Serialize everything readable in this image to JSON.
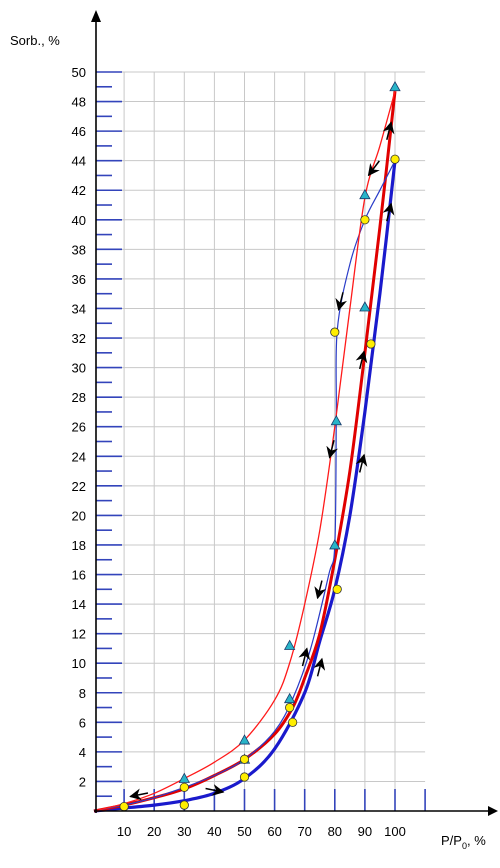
{
  "chart_data": {
    "type": "line",
    "ylabel": "Sorb., %",
    "xlabel_main": "P/P",
    "xlabel_sub": "0",
    "xlabel_unit": ", %",
    "xlim": [
      0,
      110
    ],
    "ylim": [
      0,
      50
    ],
    "x_ticks": [
      10,
      20,
      30,
      40,
      50,
      60,
      70,
      80,
      90,
      100
    ],
    "y_ticks": [
      2,
      4,
      6,
      8,
      10,
      12,
      14,
      16,
      18,
      20,
      22,
      24,
      26,
      28,
      30,
      32,
      34,
      36,
      38,
      40,
      42,
      44,
      46,
      48,
      50
    ],
    "grid": true,
    "colors": {
      "thick_blue": "#1a1acc",
      "thick_red": "#e00000",
      "thin_blue": "#2a3cc8",
      "thin_red": "#ff1a1a",
      "grid": "#c8c8c8",
      "tick_mark": "#3344bb",
      "triangle_fill": "#29b4c8",
      "circle_fill": "#ffee00",
      "arrow": "#000000"
    },
    "series": [
      {
        "style": "thick-blue",
        "values": [
          [
            0,
            0
          ],
          [
            10,
            0.2
          ],
          [
            20,
            0.4
          ],
          [
            30,
            0.7
          ],
          [
            40,
            1.2
          ],
          [
            50,
            2.2
          ],
          [
            60,
            4.2
          ],
          [
            70,
            8
          ],
          [
            75,
            11.5
          ],
          [
            80,
            15
          ],
          [
            85,
            20
          ],
          [
            90,
            27
          ],
          [
            95,
            35
          ],
          [
            100,
            44
          ]
        ]
      },
      {
        "style": "thick-red",
        "values": [
          [
            0,
            0
          ],
          [
            10,
            0.4
          ],
          [
            20,
            0.9
          ],
          [
            30,
            1.5
          ],
          [
            40,
            2.4
          ],
          [
            50,
            3.5
          ],
          [
            60,
            5.2
          ],
          [
            66,
            7
          ],
          [
            70,
            9
          ],
          [
            75,
            12
          ],
          [
            80,
            17
          ],
          [
            85,
            23
          ],
          [
            90,
            31
          ],
          [
            95,
            39.5
          ],
          [
            100,
            48.7
          ]
        ]
      },
      {
        "style": "thin-blue",
        "values": [
          [
            0,
            0
          ],
          [
            10,
            0.4
          ],
          [
            20,
            0.9
          ],
          [
            30,
            1.6
          ],
          [
            40,
            2.4
          ],
          [
            50,
            3.5
          ],
          [
            60,
            5.4
          ],
          [
            66,
            7.6
          ],
          [
            72,
            11
          ],
          [
            78,
            16
          ],
          [
            80,
            18
          ],
          [
            80.5,
            26.5
          ],
          [
            80.8,
            32.5
          ],
          [
            85,
            37
          ],
          [
            90,
            40
          ],
          [
            95,
            42
          ],
          [
            100,
            44
          ]
        ]
      },
      {
        "style": "thin-red",
        "values": [
          [
            0,
            0
          ],
          [
            10,
            0.5
          ],
          [
            20,
            1.2
          ],
          [
            30,
            2.2
          ],
          [
            40,
            3.3
          ],
          [
            50,
            4.8
          ],
          [
            60,
            7.5
          ],
          [
            65,
            10
          ],
          [
            70,
            14
          ],
          [
            75,
            19
          ],
          [
            80,
            26
          ],
          [
            85,
            34
          ],
          [
            90,
            41.5
          ],
          [
            95,
            45
          ],
          [
            100,
            48.7
          ]
        ]
      }
    ],
    "triangles": [
      [
        30,
        2.2
      ],
      [
        50,
        4.8
      ],
      [
        50,
        3.5
      ],
      [
        65,
        11.2
      ],
      [
        65,
        7.6
      ],
      [
        80,
        18
      ],
      [
        80.5,
        26.4
      ],
      [
        90,
        34.1
      ],
      [
        90,
        41.7
      ],
      [
        100,
        49
      ]
    ],
    "circles": [
      [
        10,
        0.3
      ],
      [
        30,
        0.4
      ],
      [
        30,
        1.6
      ],
      [
        50,
        3.5
      ],
      [
        50,
        2.3
      ],
      [
        65,
        7.0
      ],
      [
        66,
        6.0
      ],
      [
        80,
        32.4
      ],
      [
        80.8,
        15
      ],
      [
        90,
        40
      ],
      [
        92,
        31.6
      ],
      [
        100,
        44.1
      ]
    ],
    "arrows": [
      {
        "x": 15,
        "y": 1.1,
        "dir": "left"
      },
      {
        "x": 40,
        "y": 1.4,
        "dir": "right"
      },
      {
        "x": 70,
        "y": 10.4,
        "dir": "up"
      },
      {
        "x": 75,
        "y": 9.7,
        "dir": "up"
      },
      {
        "x": 75,
        "y": 15,
        "dir": "down"
      },
      {
        "x": 79,
        "y": 24.5,
        "dir": "down"
      },
      {
        "x": 82,
        "y": 34.5,
        "dir": "down"
      },
      {
        "x": 89,
        "y": 30.5,
        "dir": "up"
      },
      {
        "x": 89,
        "y": 23.5,
        "dir": "up"
      },
      {
        "x": 93,
        "y": 43.5,
        "dir": "down-left"
      },
      {
        "x": 98,
        "y": 40.5,
        "dir": "up"
      },
      {
        "x": 98,
        "y": 46,
        "dir": "up"
      }
    ]
  }
}
